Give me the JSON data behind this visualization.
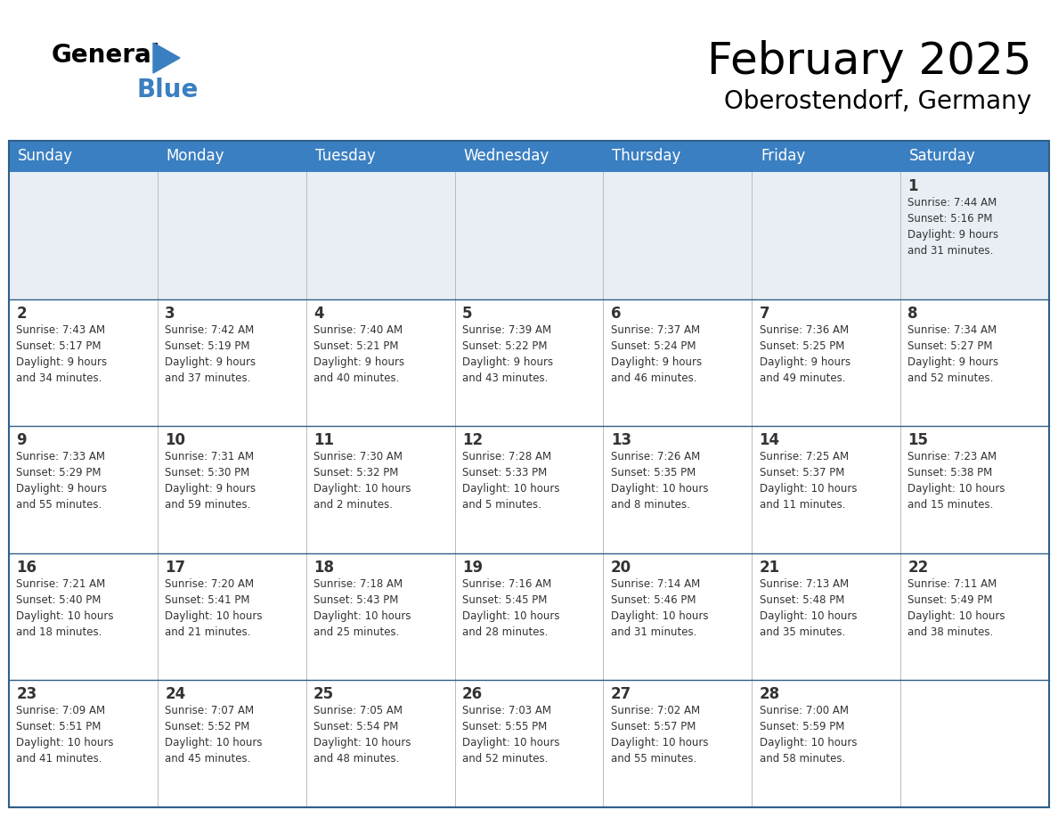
{
  "title": "February 2025",
  "subtitle": "Oberostendorf, Germany",
  "header_color": "#3A7FC1",
  "header_text_color": "#FFFFFF",
  "cell_bg_week1": "#E8EEF4",
  "cell_bg_normal": "#FFFFFF",
  "border_color": "#2E5F8A",
  "text_color": "#333333",
  "day_names": [
    "Sunday",
    "Monday",
    "Tuesday",
    "Wednesday",
    "Thursday",
    "Friday",
    "Saturday"
  ],
  "calendar_data": [
    [
      {
        "day": "",
        "info": ""
      },
      {
        "day": "",
        "info": ""
      },
      {
        "day": "",
        "info": ""
      },
      {
        "day": "",
        "info": ""
      },
      {
        "day": "",
        "info": ""
      },
      {
        "day": "",
        "info": ""
      },
      {
        "day": "1",
        "info": "Sunrise: 7:44 AM\nSunset: 5:16 PM\nDaylight: 9 hours\nand 31 minutes."
      }
    ],
    [
      {
        "day": "2",
        "info": "Sunrise: 7:43 AM\nSunset: 5:17 PM\nDaylight: 9 hours\nand 34 minutes."
      },
      {
        "day": "3",
        "info": "Sunrise: 7:42 AM\nSunset: 5:19 PM\nDaylight: 9 hours\nand 37 minutes."
      },
      {
        "day": "4",
        "info": "Sunrise: 7:40 AM\nSunset: 5:21 PM\nDaylight: 9 hours\nand 40 minutes."
      },
      {
        "day": "5",
        "info": "Sunrise: 7:39 AM\nSunset: 5:22 PM\nDaylight: 9 hours\nand 43 minutes."
      },
      {
        "day": "6",
        "info": "Sunrise: 7:37 AM\nSunset: 5:24 PM\nDaylight: 9 hours\nand 46 minutes."
      },
      {
        "day": "7",
        "info": "Sunrise: 7:36 AM\nSunset: 5:25 PM\nDaylight: 9 hours\nand 49 minutes."
      },
      {
        "day": "8",
        "info": "Sunrise: 7:34 AM\nSunset: 5:27 PM\nDaylight: 9 hours\nand 52 minutes."
      }
    ],
    [
      {
        "day": "9",
        "info": "Sunrise: 7:33 AM\nSunset: 5:29 PM\nDaylight: 9 hours\nand 55 minutes."
      },
      {
        "day": "10",
        "info": "Sunrise: 7:31 AM\nSunset: 5:30 PM\nDaylight: 9 hours\nand 59 minutes."
      },
      {
        "day": "11",
        "info": "Sunrise: 7:30 AM\nSunset: 5:32 PM\nDaylight: 10 hours\nand 2 minutes."
      },
      {
        "day": "12",
        "info": "Sunrise: 7:28 AM\nSunset: 5:33 PM\nDaylight: 10 hours\nand 5 minutes."
      },
      {
        "day": "13",
        "info": "Sunrise: 7:26 AM\nSunset: 5:35 PM\nDaylight: 10 hours\nand 8 minutes."
      },
      {
        "day": "14",
        "info": "Sunrise: 7:25 AM\nSunset: 5:37 PM\nDaylight: 10 hours\nand 11 minutes."
      },
      {
        "day": "15",
        "info": "Sunrise: 7:23 AM\nSunset: 5:38 PM\nDaylight: 10 hours\nand 15 minutes."
      }
    ],
    [
      {
        "day": "16",
        "info": "Sunrise: 7:21 AM\nSunset: 5:40 PM\nDaylight: 10 hours\nand 18 minutes."
      },
      {
        "day": "17",
        "info": "Sunrise: 7:20 AM\nSunset: 5:41 PM\nDaylight: 10 hours\nand 21 minutes."
      },
      {
        "day": "18",
        "info": "Sunrise: 7:18 AM\nSunset: 5:43 PM\nDaylight: 10 hours\nand 25 minutes."
      },
      {
        "day": "19",
        "info": "Sunrise: 7:16 AM\nSunset: 5:45 PM\nDaylight: 10 hours\nand 28 minutes."
      },
      {
        "day": "20",
        "info": "Sunrise: 7:14 AM\nSunset: 5:46 PM\nDaylight: 10 hours\nand 31 minutes."
      },
      {
        "day": "21",
        "info": "Sunrise: 7:13 AM\nSunset: 5:48 PM\nDaylight: 10 hours\nand 35 minutes."
      },
      {
        "day": "22",
        "info": "Sunrise: 7:11 AM\nSunset: 5:49 PM\nDaylight: 10 hours\nand 38 minutes."
      }
    ],
    [
      {
        "day": "23",
        "info": "Sunrise: 7:09 AM\nSunset: 5:51 PM\nDaylight: 10 hours\nand 41 minutes."
      },
      {
        "day": "24",
        "info": "Sunrise: 7:07 AM\nSunset: 5:52 PM\nDaylight: 10 hours\nand 45 minutes."
      },
      {
        "day": "25",
        "info": "Sunrise: 7:05 AM\nSunset: 5:54 PM\nDaylight: 10 hours\nand 48 minutes."
      },
      {
        "day": "26",
        "info": "Sunrise: 7:03 AM\nSunset: 5:55 PM\nDaylight: 10 hours\nand 52 minutes."
      },
      {
        "day": "27",
        "info": "Sunrise: 7:02 AM\nSunset: 5:57 PM\nDaylight: 10 hours\nand 55 minutes."
      },
      {
        "day": "28",
        "info": "Sunrise: 7:00 AM\nSunset: 5:59 PM\nDaylight: 10 hours\nand 58 minutes."
      },
      {
        "day": "",
        "info": ""
      }
    ]
  ],
  "logo_text_general": "General",
  "logo_text_blue": "Blue",
  "logo_color_general": "#000000",
  "logo_color_blue": "#3A7FC1",
  "logo_triangle_color": "#3A7FC1",
  "title_fontsize": 36,
  "subtitle_fontsize": 20,
  "day_header_fontsize": 12,
  "day_num_fontsize": 12,
  "info_fontsize": 8.5
}
